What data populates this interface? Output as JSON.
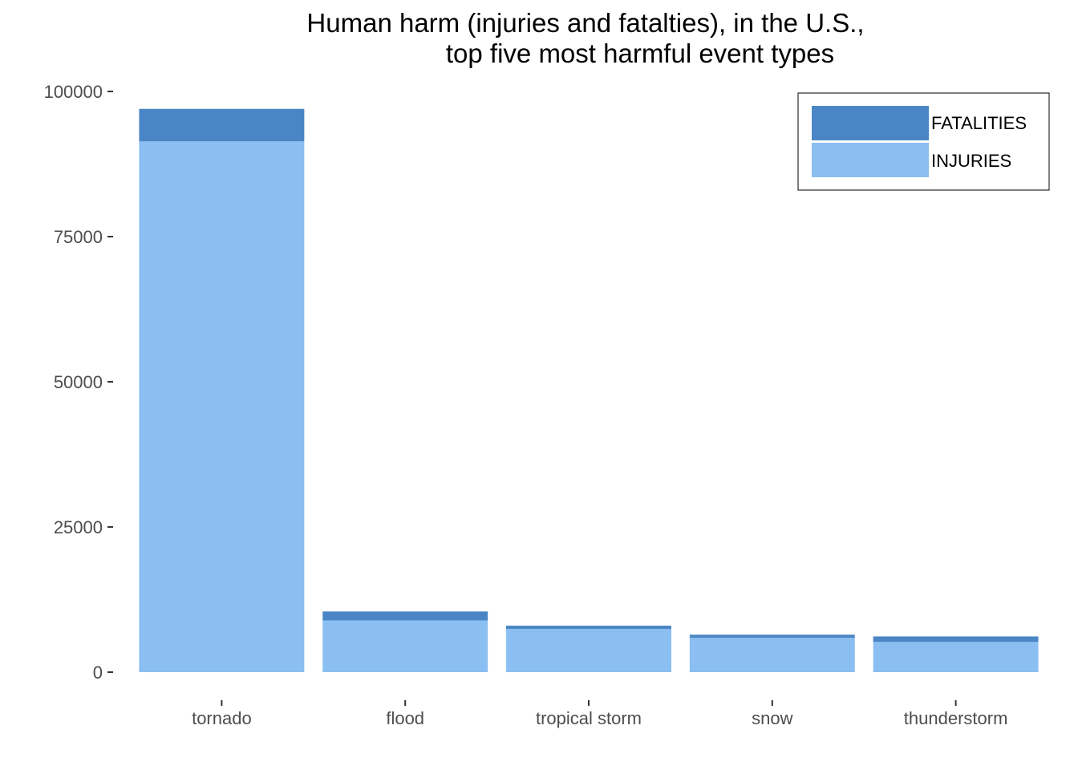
{
  "chart_data": {
    "type": "bar",
    "stacked": true,
    "title_lines": [
      "Human harm (injuries and fatalties), in the U.S.,",
      "top five most harmful event types"
    ],
    "xlabel": "",
    "ylabel": "",
    "categories": [
      "tornado",
      "flood",
      "tropical storm",
      "snow",
      "thunderstorm"
    ],
    "series": [
      {
        "name": "INJURIES",
        "color": "#8BBEF1",
        "values": [
          91400,
          8900,
          7450,
          5900,
          5200
        ]
      },
      {
        "name": "FATALITIES",
        "color": "#4A86C5",
        "values": [
          5600,
          1550,
          550,
          550,
          950
        ]
      }
    ],
    "legend_order": [
      "FATALITIES",
      "INJURIES"
    ],
    "ylim": [
      0,
      100000
    ],
    "yticks": [
      0,
      25000,
      50000,
      75000,
      100000
    ],
    "ytick_labels": [
      "0",
      "25000",
      "50000",
      "75000",
      "100000"
    ],
    "grid": false,
    "legend_position": "top-right"
  }
}
